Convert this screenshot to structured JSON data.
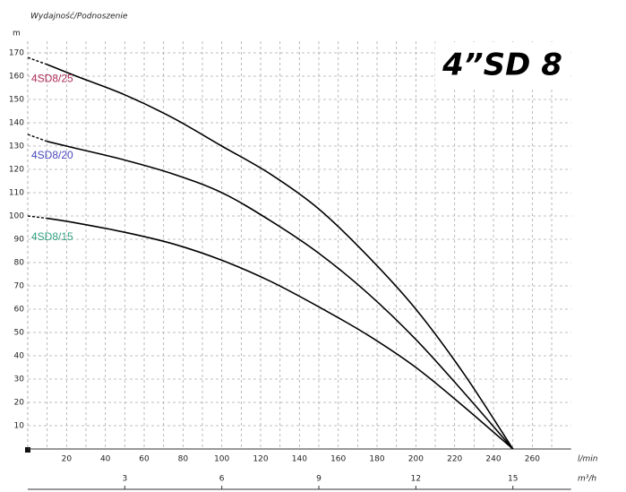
{
  "chart_data": {
    "type": "line",
    "title": "4”SD 8",
    "ylabel": "Wydajność/Podnoszenie",
    "yunit": "m",
    "xunit": "l/min",
    "x2unit": "m³/h",
    "x": [
      0,
      10,
      25,
      50,
      75,
      100,
      125,
      150,
      175,
      200,
      225,
      250
    ],
    "series": [
      {
        "name": "4SD8/25",
        "color": "#000000",
        "label_color": "#b0305a",
        "values": [
          168,
          165,
          160,
          152,
          142,
          130,
          118,
          103,
          83,
          60,
          32,
          0
        ]
      },
      {
        "name": "4SD8/20",
        "color": "#000000",
        "label_color": "#4848c0",
        "values": [
          135,
          132,
          129,
          124,
          118,
          110,
          98,
          84,
          67,
          47,
          24,
          0
        ]
      },
      {
        "name": "4SD8/15",
        "color": "#000000",
        "label_color": "#30a080",
        "values": [
          100,
          99,
          97,
          93,
          88,
          81,
          72,
          61,
          49,
          35,
          18,
          0
        ]
      }
    ],
    "xlim": [
      0,
      280
    ],
    "xticks": [
      20,
      40,
      60,
      80,
      100,
      120,
      140,
      160,
      180,
      200,
      220,
      240,
      260
    ],
    "xgrid": [
      10,
      20,
      30,
      40,
      50,
      60,
      70,
      80,
      90,
      100,
      110,
      120,
      130,
      140,
      150,
      160,
      170,
      180,
      190,
      200,
      210,
      220,
      230,
      240,
      250,
      260,
      270
    ],
    "x2lim": [
      0,
      16.8
    ],
    "x2ticks": [
      3,
      6,
      9,
      12,
      15
    ],
    "ylim": [
      0,
      175
    ],
    "yticks": [
      10,
      20,
      30,
      40,
      50,
      60,
      70,
      80,
      90,
      100,
      110,
      120,
      130,
      140,
      150,
      160,
      170
    ],
    "grid": true
  }
}
